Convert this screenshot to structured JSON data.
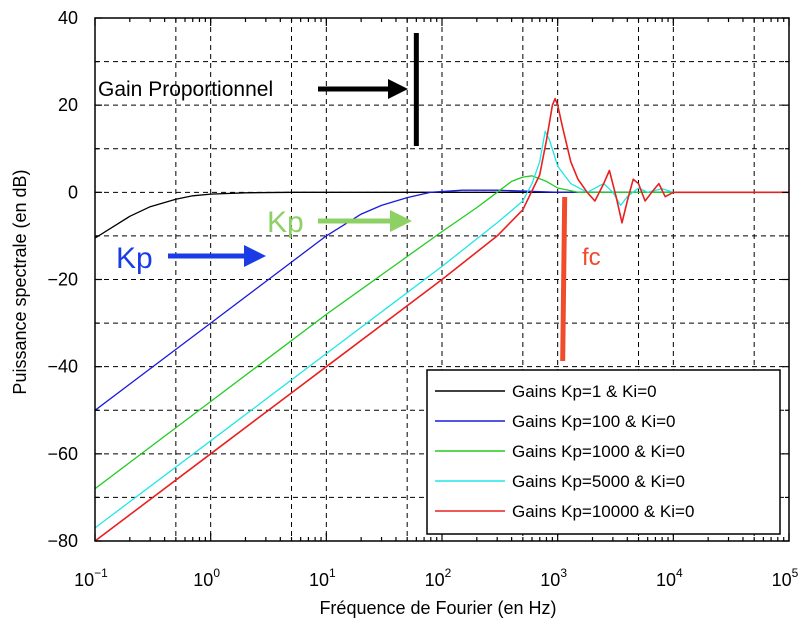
{
  "chart_data": {
    "type": "line",
    "xlabel": "Fréquence de Fourier (en Hz)",
    "ylabel": "Puissance spectrale (en dB)",
    "x_scale": "log",
    "xlim": [
      0.1,
      100000
    ],
    "ylim": [
      -80,
      40
    ],
    "grid": true,
    "legend_position": "bottom-right",
    "x_ticks": [
      {
        "value": 0.1,
        "label": "10",
        "exp": "−1"
      },
      {
        "value": 1,
        "label": "10",
        "exp": "0"
      },
      {
        "value": 10,
        "label": "10",
        "exp": "1"
      },
      {
        "value": 100,
        "label": "10",
        "exp": "2"
      },
      {
        "value": 1000,
        "label": "10",
        "exp": "3"
      },
      {
        "value": 10000,
        "label": "10",
        "exp": "4"
      },
      {
        "value": 100000,
        "label": "10",
        "exp": "5"
      }
    ],
    "y_ticks": [
      {
        "value": 40,
        "label": "40"
      },
      {
        "value": 20,
        "label": "20"
      },
      {
        "value": 0,
        "label": "0"
      },
      {
        "value": -20,
        "label": "−20"
      },
      {
        "value": -40,
        "label": "−40"
      },
      {
        "value": -60,
        "label": "−60"
      },
      {
        "value": -80,
        "label": "−80"
      }
    ],
    "series": [
      {
        "name": "Gains Kp=1 & Ki=0",
        "color": "#000000",
        "x": [
          0.1,
          0.2,
          0.3,
          0.5,
          0.7,
          1,
          2,
          5,
          10,
          100,
          1000,
          100000
        ],
        "y": [
          -10.5,
          -5.5,
          -3.3,
          -1.6,
          -0.8,
          -0.4,
          -0.1,
          0,
          0,
          0,
          0,
          0
        ]
      },
      {
        "name": "Gains Kp=100 & Ki=0",
        "color": "#1a1adc",
        "x": [
          0.1,
          1,
          5,
          10,
          20,
          30,
          50,
          80,
          150,
          300,
          1000,
          100000
        ],
        "y": [
          -50,
          -30,
          -16,
          -10,
          -5,
          -3,
          -1.2,
          0,
          0.5,
          0.5,
          0,
          0
        ]
      },
      {
        "name": "Gains Kp=1000 & Ki=0",
        "color": "#22cc22",
        "x": [
          0.1,
          1,
          10,
          100,
          200,
          300,
          400,
          500,
          600,
          800,
          1000,
          1500,
          2000,
          100000
        ],
        "y": [
          -68,
          -48,
          -28,
          -9,
          -3.5,
          0,
          2.5,
          3.5,
          3.8,
          2.5,
          1,
          0,
          0,
          0
        ]
      },
      {
        "name": "Gains Kp=5000 & Ki=0",
        "color": "#22e6e6",
        "x": [
          0.1,
          1,
          10,
          100,
          300,
          500,
          600,
          700,
          780,
          850,
          1000,
          1300,
          1800,
          2500,
          3000,
          3500,
          4000,
          5000,
          6000,
          8000,
          10000,
          100000
        ],
        "y": [
          -77,
          -57,
          -37,
          -17,
          -7,
          -2,
          2,
          7,
          14,
          12,
          6,
          2,
          0,
          2,
          0,
          -3,
          -1,
          1,
          0,
          0.8,
          0,
          0
        ]
      },
      {
        "name": "Gains Kp=10000 & Ki=0",
        "color": "#e82020",
        "x": [
          0.1,
          1,
          10,
          100,
          300,
          500,
          700,
          800,
          900,
          950,
          1000,
          1100,
          1300,
          1500,
          1800,
          2100,
          2500,
          2800,
          3200,
          3600,
          4000,
          4500,
          5000,
          5700,
          6500,
          7500,
          8500,
          10000,
          15000,
          30000,
          100000
        ],
        "y": [
          -80,
          -60,
          -40,
          -20,
          -10,
          -4,
          4,
          12,
          20,
          21.5,
          20,
          15,
          7,
          3,
          0,
          -2,
          2,
          5,
          -1,
          -7,
          -2,
          3,
          2,
          -2,
          0,
          2,
          -1,
          0,
          0,
          0,
          0
        ]
      }
    ],
    "annotations": {
      "gain_text": "Gain Proportionnel",
      "kp_blue_text": "Kp",
      "kp_green_text": "Kp",
      "fc_text": "fc",
      "gain_marker_x": 60,
      "fc_marker_x": 1150
    }
  }
}
